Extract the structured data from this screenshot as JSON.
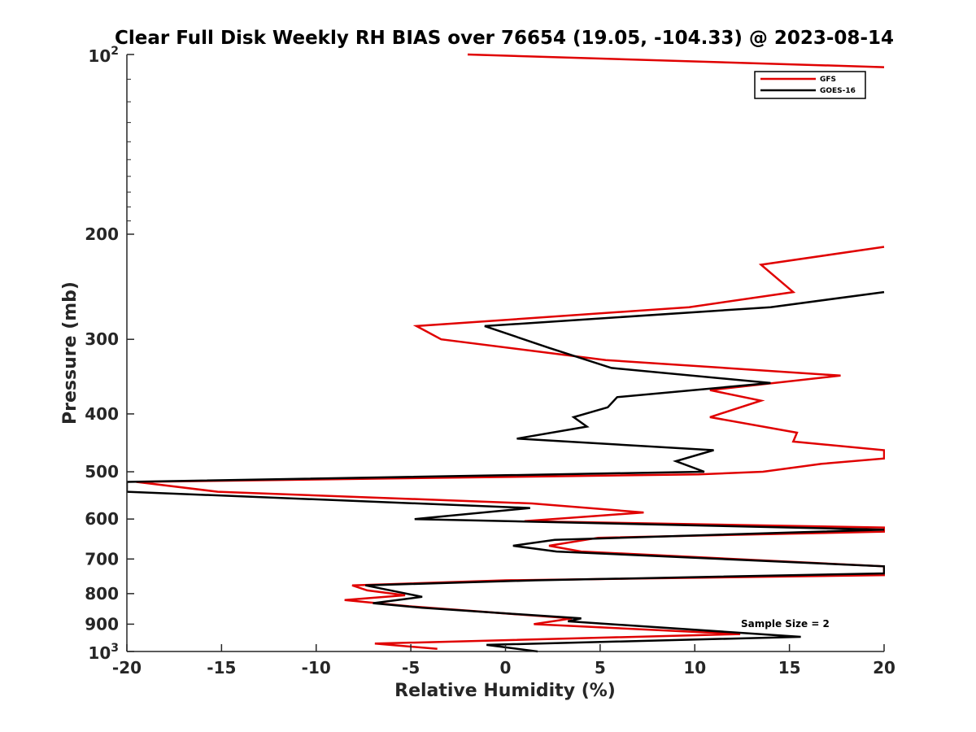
{
  "chart_data": {
    "type": "line",
    "title": "Clear Full Disk Weekly RH BIAS over 76654 (19.05, -104.33) @ 2023-08-14",
    "xlabel": "Relative Humidity (%)",
    "ylabel": "Pressure (mb)",
    "xlim": [
      -20,
      20
    ],
    "ylim": [
      100,
      1000
    ],
    "yscale": "log",
    "y_reversed": true,
    "x_ticks": [
      -20,
      -15,
      -10,
      -5,
      0,
      5,
      10,
      15,
      20
    ],
    "x_tick_labels": [
      "-20",
      "-15",
      "-10",
      "-5",
      "0",
      "5",
      "10",
      "15",
      "20"
    ],
    "y_ticks": [
      200,
      300,
      400,
      500,
      600,
      700,
      800,
      900
    ],
    "y_tick_labels": [
      "200",
      "300",
      "400",
      "500",
      "600",
      "700",
      "800",
      "900"
    ],
    "y_decade_labels": [
      {
        "value": 100,
        "base": "10",
        "exp": "2"
      },
      {
        "value": 1000,
        "base": "10",
        "exp": "3"
      }
    ],
    "legend_position": "top-right",
    "annotation": "Sample Size = 2",
    "series": [
      {
        "name": "GFS",
        "color": "#e00000",
        "points": [
          [
            -2.0,
            100
          ],
          [
            20.0,
            105
          ],
          [
            20.0,
            210
          ],
          [
            13.5,
            225
          ],
          [
            15.2,
            250
          ],
          [
            9.7,
            265
          ],
          [
            -4.7,
            285
          ],
          [
            -3.4,
            300
          ],
          [
            5.3,
            325
          ],
          [
            17.7,
            345
          ],
          [
            10.8,
            365
          ],
          [
            13.5,
            380
          ],
          [
            10.8,
            405
          ],
          [
            15.4,
            430
          ],
          [
            15.2,
            445
          ],
          [
            20.0,
            460
          ],
          [
            20.0,
            475
          ],
          [
            16.7,
            485
          ],
          [
            13.6,
            500
          ],
          [
            10.2,
            505
          ],
          [
            -19.5,
            520
          ],
          [
            -15.2,
            540
          ],
          [
            1.4,
            565
          ],
          [
            7.3,
            585
          ],
          [
            1.0,
            605
          ],
          [
            20.0,
            620
          ],
          [
            20.0,
            630
          ],
          [
            4.9,
            645
          ],
          [
            2.3,
            665
          ],
          [
            4.0,
            680
          ],
          [
            20.0,
            720
          ],
          [
            20.0,
            745
          ],
          [
            0.0,
            760
          ],
          [
            -8.1,
            775
          ],
          [
            -7.3,
            790
          ],
          [
            -5.3,
            805
          ],
          [
            -8.5,
            820
          ],
          [
            -5.1,
            840
          ],
          [
            3.5,
            880
          ],
          [
            1.5,
            900
          ],
          [
            12.4,
            935
          ],
          [
            -6.9,
            970
          ],
          [
            -3.6,
            990
          ]
        ]
      },
      {
        "name": "GOES-16",
        "color": "#000000",
        "points": [
          [
            20.0,
            250
          ],
          [
            14.0,
            265
          ],
          [
            -1.1,
            285
          ],
          [
            2.3,
            310
          ],
          [
            5.6,
            335
          ],
          [
            14.0,
            355
          ],
          [
            5.9,
            375
          ],
          [
            5.4,
            390
          ],
          [
            3.6,
            405
          ],
          [
            4.3,
            420
          ],
          [
            0.6,
            440
          ],
          [
            11.0,
            460
          ],
          [
            9.0,
            480
          ],
          [
            10.5,
            500
          ],
          [
            -20.0,
            520
          ],
          [
            -20.0,
            540
          ],
          [
            1.3,
            575
          ],
          [
            -4.8,
            600
          ],
          [
            20.0,
            625
          ],
          [
            2.6,
            650
          ],
          [
            0.4,
            665
          ],
          [
            2.7,
            680
          ],
          [
            20.0,
            720
          ],
          [
            20.0,
            740
          ],
          [
            1.6,
            760
          ],
          [
            -7.4,
            775
          ],
          [
            -4.4,
            810
          ],
          [
            -7.0,
            830
          ],
          [
            -4.4,
            845
          ],
          [
            4.0,
            880
          ],
          [
            3.3,
            890
          ],
          [
            15.6,
            945
          ],
          [
            -1.0,
            975
          ],
          [
            1.7,
            1000
          ]
        ]
      }
    ]
  }
}
